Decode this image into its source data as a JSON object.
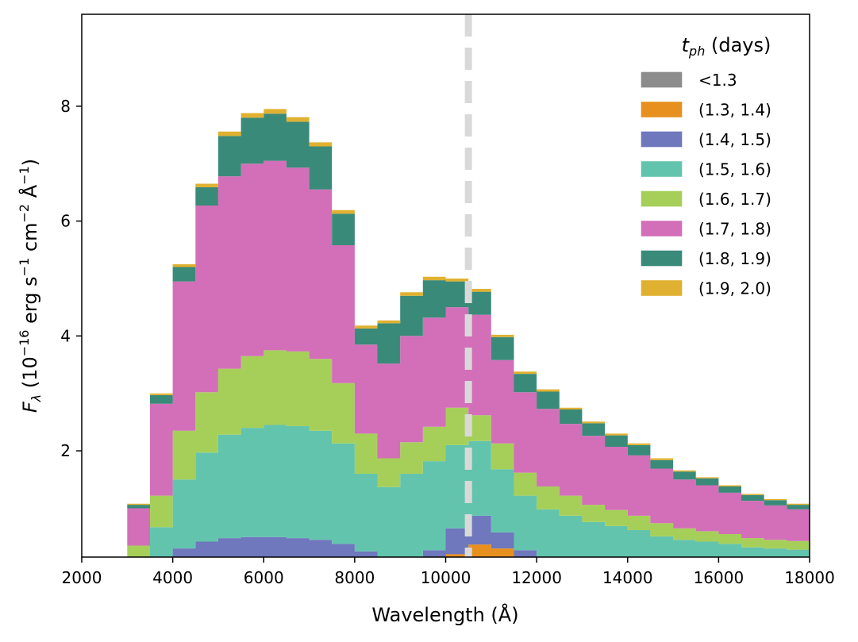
{
  "chart_data": {
    "type": "area",
    "stacked": true,
    "xlabel": "Wavelength (Å)",
    "ylabel": {
      "symbol": "F",
      "subscript": "λ",
      "units_open": " (10",
      "exp1": "−16",
      "erg": " erg s",
      "exp2": "−1",
      "cm": " cm",
      "exp3": "−2",
      "ang": " Å",
      "exp4": "−1",
      "close": ")"
    },
    "xlim": [
      2000,
      18000
    ],
    "ylim": [
      0.15,
      9.6
    ],
    "xticks": [
      2000,
      4000,
      6000,
      8000,
      10000,
      12000,
      14000,
      16000,
      18000
    ],
    "xtick_labels": [
      "2000",
      "4000",
      "6000",
      "8000",
      "10000",
      "12000",
      "14000",
      "16000",
      "18000"
    ],
    "yticks": [
      2,
      4,
      6,
      8
    ],
    "ytick_labels": [
      "2",
      "4",
      "6",
      "8"
    ],
    "vertical_line_x": 10500,
    "legend": {
      "title_symbol": "t",
      "title_subscript": "ph",
      "title_rest": " (days)",
      "location": "upper-right"
    },
    "x": [
      2000,
      2500,
      3000,
      3500,
      4000,
      4500,
      5000,
      5500,
      6000,
      6500,
      7000,
      7500,
      8000,
      8500,
      9000,
      9500,
      10000,
      10500,
      11000,
      11500,
      12000,
      12500,
      13000,
      13500,
      14000,
      14500,
      15000,
      15500,
      16000,
      16500,
      17000,
      17500,
      18000
    ],
    "series": [
      {
        "name": "<1.3",
        "color": "#8c8c8c",
        "values": [
          0,
          0,
          0,
          0,
          0,
          0,
          0,
          0,
          0,
          0,
          0,
          0,
          0,
          0,
          0,
          0,
          0,
          0.02,
          0.05,
          0.02,
          0,
          0,
          0,
          0,
          0,
          0,
          0,
          0,
          0,
          0,
          0,
          0,
          0
        ]
      },
      {
        "name": "(1.3, 1.4)",
        "color": "#e8901f",
        "values": [
          0,
          0,
          0,
          0,
          0,
          0,
          0,
          0,
          0,
          0,
          0,
          0,
          0,
          0,
          0,
          0.02,
          0.2,
          0.35,
          0.25,
          0.1,
          0,
          0,
          0,
          0,
          0,
          0,
          0,
          0,
          0,
          0,
          0,
          0,
          0
        ]
      },
      {
        "name": "(1.4, 1.5)",
        "color": "#6f77bd",
        "values": [
          0,
          0,
          0,
          0.12,
          0.3,
          0.42,
          0.48,
          0.5,
          0.5,
          0.48,
          0.45,
          0.38,
          0.25,
          0.12,
          0.1,
          0.25,
          0.45,
          0.5,
          0.28,
          0.15,
          0.08,
          0.05,
          0.04,
          0.03,
          0.02,
          0.01,
          0,
          0,
          0,
          0,
          0,
          0,
          0
        ]
      },
      {
        "name": "(1.5, 1.6)",
        "color": "#63c4ad",
        "values": [
          0,
          0,
          0.15,
          0.55,
          1.2,
          1.55,
          1.8,
          1.9,
          1.95,
          1.95,
          1.9,
          1.75,
          1.35,
          1.25,
          1.5,
          1.55,
          1.45,
          1.3,
          1.1,
          0.95,
          0.9,
          0.82,
          0.72,
          0.66,
          0.6,
          0.5,
          0.45,
          0.42,
          0.38,
          0.32,
          0.3,
          0.28,
          0.26
        ]
      },
      {
        "name": "(1.6, 1.7)",
        "color": "#a6cf5a",
        "values": [
          0,
          0.02,
          0.2,
          0.55,
          0.85,
          1.05,
          1.15,
          1.25,
          1.3,
          1.3,
          1.25,
          1.05,
          0.7,
          0.5,
          0.55,
          0.6,
          0.65,
          0.45,
          0.45,
          0.4,
          0.4,
          0.35,
          0.3,
          0.28,
          0.25,
          0.23,
          0.2,
          0.18,
          0.17,
          0.16,
          0.15,
          0.15,
          0.14
        ]
      },
      {
        "name": "(1.7, 1.8)",
        "color": "#d26fb8",
        "values": [
          0,
          0.1,
          0.65,
          1.6,
          2.6,
          3.25,
          3.35,
          3.35,
          3.3,
          3.2,
          2.95,
          2.4,
          1.55,
          1.65,
          1.85,
          1.9,
          1.75,
          1.75,
          1.45,
          1.4,
          1.35,
          1.25,
          1.2,
          1.1,
          1.05,
          0.95,
          0.85,
          0.8,
          0.72,
          0.65,
          0.6,
          0.55,
          0.52
        ]
      },
      {
        "name": "(1.8, 1.9)",
        "color": "#3a8a79",
        "values": [
          0,
          0.01,
          0.06,
          0.15,
          0.25,
          0.32,
          0.7,
          0.8,
          0.82,
          0.8,
          0.75,
          0.55,
          0.28,
          0.7,
          0.7,
          0.65,
          0.45,
          0.4,
          0.4,
          0.32,
          0.3,
          0.25,
          0.22,
          0.2,
          0.18,
          0.15,
          0.14,
          0.12,
          0.11,
          0.1,
          0.09,
          0.08,
          0.07
        ]
      },
      {
        "name": "(1.9, 2.0)",
        "color": "#e0b130",
        "values": [
          0,
          0.01,
          0.02,
          0.03,
          0.05,
          0.06,
          0.08,
          0.08,
          0.08,
          0.08,
          0.07,
          0.06,
          0.05,
          0.05,
          0.06,
          0.06,
          0.05,
          0.05,
          0.04,
          0.04,
          0.04,
          0.03,
          0.03,
          0.03,
          0.03,
          0.03,
          0.02,
          0.02,
          0.02,
          0.02,
          0.02,
          0.02,
          0.02
        ]
      }
    ]
  }
}
